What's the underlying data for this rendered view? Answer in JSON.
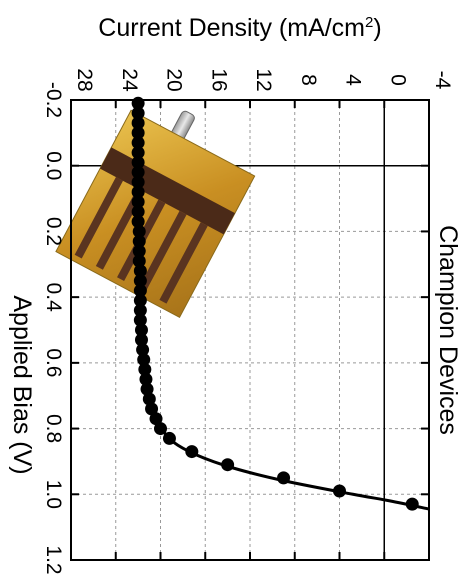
{
  "chart_data": {
    "type": "line",
    "title": "",
    "orientation": "rotated-90-clockwise",
    "xlabel": "Applied Bias (V)",
    "ylabel": "Current Density (mA/cm²)",
    "ylabel_parts": {
      "base": "Current Density (mA/cm",
      "sup": "2",
      "end": ")"
    },
    "annotation": "Champion Devices",
    "xlim": [
      -0.2,
      1.2
    ],
    "ylim": [
      -4,
      28
    ],
    "x_ticks": [
      -0.2,
      0.0,
      0.2,
      0.4,
      0.6,
      0.8,
      1.0,
      1.2
    ],
    "x_tick_labels": [
      "-0.2",
      "0.0",
      "0.2",
      "0.4",
      "0.6",
      "0.8",
      "1.0",
      "1.2"
    ],
    "y_ticks": [
      -4,
      0,
      4,
      8,
      12,
      16,
      20,
      24,
      28
    ],
    "y_tick_labels": [
      "-4",
      "0",
      "4",
      "8",
      "12",
      "16",
      "20",
      "24",
      "28"
    ],
    "grid": true,
    "reference_lines": {
      "x": 0.0,
      "y": 0
    },
    "inset_image": "device-photo",
    "colors": {
      "marker": "#000000",
      "line": "#000000",
      "grid": "#999999"
    },
    "series": [
      {
        "points": [
          [
            -0.19,
            22.0
          ],
          [
            -0.16,
            22.0
          ],
          [
            -0.13,
            22.0
          ],
          [
            -0.1,
            22.0
          ],
          [
            -0.07,
            22.0
          ],
          [
            -0.04,
            22.0
          ],
          [
            -0.01,
            22.0
          ],
          [
            0.02,
            22.0
          ],
          [
            0.05,
            22.0
          ],
          [
            0.08,
            22.0
          ],
          [
            0.11,
            22.0
          ],
          [
            0.14,
            22.0
          ],
          [
            0.17,
            22.0
          ],
          [
            0.2,
            21.9
          ],
          [
            0.23,
            21.9
          ],
          [
            0.26,
            21.9
          ],
          [
            0.29,
            21.9
          ],
          [
            0.32,
            21.8
          ],
          [
            0.35,
            21.8
          ],
          [
            0.38,
            21.8
          ],
          [
            0.41,
            21.8
          ],
          [
            0.44,
            21.8
          ],
          [
            0.47,
            21.8
          ],
          [
            0.5,
            21.7
          ],
          [
            0.53,
            21.7
          ],
          [
            0.56,
            21.6
          ],
          [
            0.59,
            21.5
          ],
          [
            0.62,
            21.4
          ],
          [
            0.65,
            21.3
          ],
          [
            0.68,
            21.2
          ],
          [
            0.71,
            21.0
          ],
          [
            0.74,
            20.8
          ],
          [
            0.77,
            20.4
          ],
          [
            0.8,
            20.0
          ],
          [
            0.83,
            19.2
          ],
          [
            0.87,
            17.2
          ],
          [
            0.91,
            14.0
          ],
          [
            0.95,
            9.0
          ],
          [
            0.99,
            4.0
          ],
          [
            1.03,
            -2.5
          ]
        ],
        "fit_curve": [
          [
            -0.2,
            22.0
          ],
          [
            0.2,
            21.9
          ],
          [
            0.5,
            21.7
          ],
          [
            0.6,
            21.45
          ],
          [
            0.7,
            21.0
          ],
          [
            0.76,
            20.5
          ],
          [
            0.8,
            19.9
          ],
          [
            0.84,
            18.9
          ],
          [
            0.88,
            16.8
          ],
          [
            0.92,
            13.5
          ],
          [
            0.96,
            8.8
          ],
          [
            1.0,
            2.8
          ],
          [
            1.02,
            -0.5
          ],
          [
            1.045,
            -4.0
          ]
        ]
      }
    ]
  }
}
